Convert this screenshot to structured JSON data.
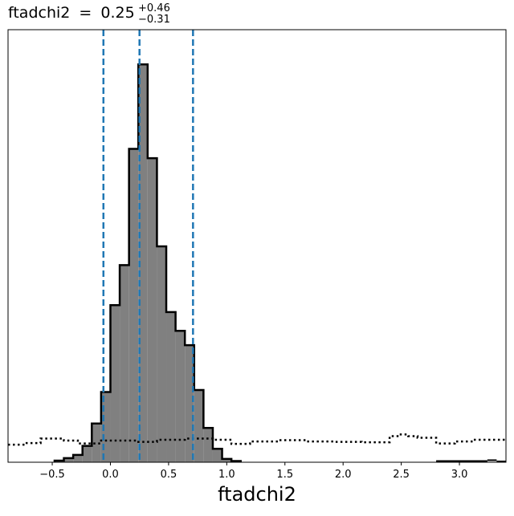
{
  "chart_data": {
    "type": "histogram",
    "title": {
      "label": "ftadchi2",
      "equals": "=",
      "median": "0.25",
      "upper_err": "+0.46",
      "lower_err": "−0.31"
    },
    "xlabel": "ftadchi2",
    "ylabel": "",
    "xlim": [
      -0.88,
      3.4
    ],
    "ylim": [
      0,
      1.06
    ],
    "xticks": [
      -0.5,
      0.0,
      0.5,
      1.0,
      1.5,
      2.0,
      2.5,
      3.0
    ],
    "xtick_labels": [
      "−0.5",
      "0.0",
      "0.5",
      "1.0",
      "1.5",
      "2.0",
      "2.5",
      "3.0"
    ],
    "yticks_visible": false,
    "posterior": {
      "name": "posterior",
      "fill_color": "#808080",
      "edge_color": "#000000",
      "bin_edges": [
        -0.48,
        -0.4,
        -0.32,
        -0.24,
        -0.16,
        -0.08,
        0.0,
        0.08,
        0.16,
        0.24,
        0.32,
        0.4,
        0.48,
        0.56,
        0.64,
        0.72,
        0.8,
        0.88,
        0.96,
        1.04,
        1.12
      ],
      "values": [
        0.004,
        0.01,
        0.018,
        0.04,
        0.095,
        0.172,
        0.385,
        0.483,
        0.768,
        0.975,
        0.745,
        0.529,
        0.368,
        0.322,
        0.287,
        0.177,
        0.084,
        0.033,
        0.008,
        0.003
      ]
    },
    "posterior_tail": {
      "name": "posterior tail",
      "segments": [
        {
          "x0": 2.8,
          "x1": 3.24,
          "y": 0.003
        },
        {
          "x0": 3.24,
          "x1": 3.32,
          "y": 0.005
        },
        {
          "x0": 3.32,
          "x1": 3.4,
          "y": 0.002
        }
      ]
    },
    "prior": {
      "name": "prior",
      "line_style": "dotted",
      "edges": [
        -0.88,
        -0.72,
        -0.6,
        -0.4,
        -0.28,
        -0.08,
        0.24,
        0.4,
        0.64,
        0.88,
        1.04,
        1.2,
        1.44,
        1.68,
        1.92,
        2.16,
        2.4,
        2.48,
        2.56,
        2.64,
        2.8,
        2.96,
        3.12,
        3.4
      ],
      "values": [
        0.043,
        0.047,
        0.058,
        0.053,
        0.046,
        0.053,
        0.05,
        0.055,
        0.058,
        0.055,
        0.045,
        0.051,
        0.054,
        0.051,
        0.05,
        0.049,
        0.064,
        0.068,
        0.064,
        0.06,
        0.046,
        0.051,
        0.055
      ]
    },
    "quantile_lines": {
      "color": "#1f77b4",
      "line_style": "dashed",
      "values": [
        -0.06,
        0.25,
        0.71
      ]
    }
  }
}
